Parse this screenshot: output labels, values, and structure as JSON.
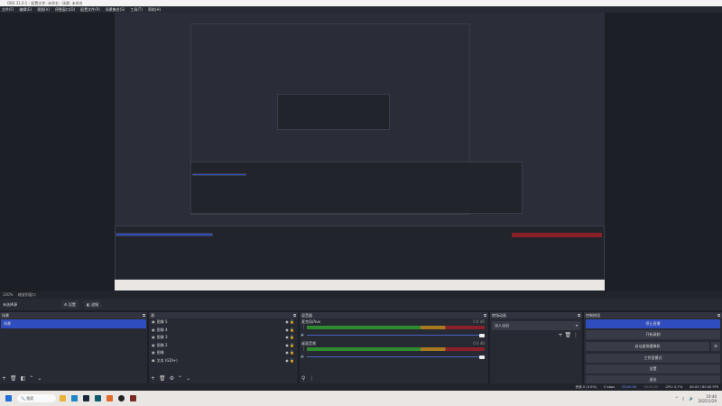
{
  "window": {
    "title": "OBS 31.0.1 - 配置文件: 未命名 - 场景: 未命名"
  },
  "menu": [
    "文件(F)",
    "编辑(E)",
    "视图(V)",
    "停靠窗口(D)",
    "配置文件(P)",
    "场景集合(S)",
    "工具(T)",
    "帮助(H)"
  ],
  "preview": {
    "zoom_label": "100%",
    "zoom_mode": "缩放到窗口"
  },
  "source_bar": {
    "no_source": "未选择源",
    "settings": "设置",
    "filters": "滤镜"
  },
  "scenes": {
    "title": "场景",
    "items": [
      "场景"
    ]
  },
  "sources": {
    "title": "源",
    "items": [
      "图像 5",
      "图像 4",
      "图像 3",
      "图像 2",
      "图像",
      "文本 (GDI+)"
    ]
  },
  "mixer": {
    "title": "混音器",
    "channels": [
      {
        "name": "麦克风/Aux",
        "db": "0.0 dB"
      },
      {
        "name": "桌面音频",
        "db": "0.0 dB"
      }
    ]
  },
  "transitions": {
    "title": "转场动画",
    "selected": "淡入淡出"
  },
  "controls": {
    "title": "控制按钮",
    "buttons": [
      "停止直播",
      "开始录制",
      "启动虚拟摄像机",
      "工作室模式",
      "设置",
      "退出"
    ],
    "accent": "#2f4dbf"
  },
  "status": {
    "dropped": "丢帧 0 (0.0%)",
    "bitrate": "0 kbps",
    "stream_time": "00:00:00",
    "rec_time": "00:00:00",
    "cpu": "CPU: 0.7%",
    "fps": "60.00 / 60.00 FPS"
  },
  "taskbar": {
    "search": "搜索",
    "time": "19:40",
    "date": "2025/1/29"
  }
}
